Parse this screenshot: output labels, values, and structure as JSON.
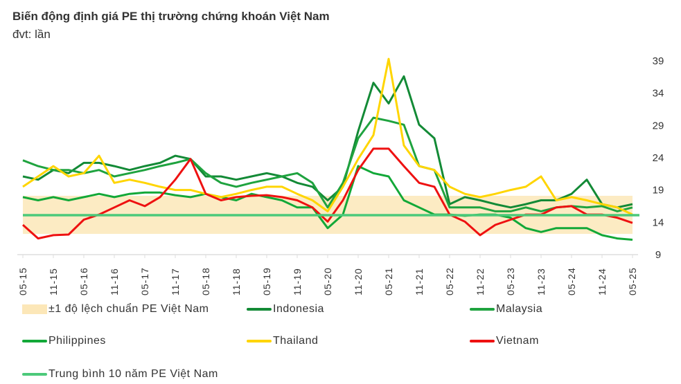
{
  "title": "Biến động định giá PE thị trường chứng khoán Việt Nam",
  "unit": "đvt: lần",
  "chart_data": {
    "type": "line",
    "title": "Biến động định giá PE thị trường chứng khoán Việt Nam",
    "ylabel": "đvt: lần",
    "ylim": [
      9,
      39
    ],
    "yticks": [
      "9",
      "14",
      "19",
      "24",
      "29",
      "34",
      "39"
    ],
    "xticks": [
      "05-15",
      "11-15",
      "05-16",
      "11-16",
      "05-17",
      "11-17",
      "05-18",
      "11-18",
      "05-19",
      "11-19",
      "05-20",
      "11-20",
      "05-21",
      "11-21",
      "05-22",
      "11-22",
      "05-23",
      "11-23",
      "05-24",
      "11-24",
      "05-25"
    ],
    "x": [
      "2015-05",
      "2015-08",
      "2015-11",
      "2016-02",
      "2016-05",
      "2016-08",
      "2016-11",
      "2017-02",
      "2017-05",
      "2017-08",
      "2017-11",
      "2018-02",
      "2018-05",
      "2018-08",
      "2018-11",
      "2019-02",
      "2019-05",
      "2019-08",
      "2019-11",
      "2020-02",
      "2020-05",
      "2020-08",
      "2020-11",
      "2021-02",
      "2021-05",
      "2021-08",
      "2021-11",
      "2022-02",
      "2022-05",
      "2022-08",
      "2022-11",
      "2023-02",
      "2023-05",
      "2023-08",
      "2023-11",
      "2024-02",
      "2024-05",
      "2024-08",
      "2024-11",
      "2025-02",
      "2025-05"
    ],
    "grid": false,
    "legend_position": "bottom",
    "band": {
      "name": "±1 độ lệch chuẩn PE Việt Nam",
      "low": 12.1,
      "high": 18.0,
      "color": "#FCE7B8"
    },
    "mean_line": {
      "name": "Trung bình 10 năm PE Việt Nam",
      "value": 15.0,
      "color": "#4CC97A"
    },
    "series": [
      {
        "name": "Indonesia",
        "color": "#138A36",
        "values": [
          21,
          20.5,
          22,
          21.5,
          23.1,
          23.1,
          22.6,
          22,
          22.6,
          23.1,
          24.2,
          23.7,
          21,
          21,
          20.5,
          21,
          21.5,
          21,
          20,
          19.4,
          17.3,
          19.4,
          28,
          35.5,
          32.3,
          36.5,
          29,
          26.9,
          16.7,
          17.8,
          17.3,
          16.7,
          16.2,
          16.7,
          17.3,
          17.3,
          18.3,
          20.5,
          16.7,
          16.2,
          16.7
        ]
      },
      {
        "name": "Malaysia",
        "color": "#1FA33F",
        "values": [
          23.5,
          22.6,
          22,
          22,
          21.5,
          22,
          21,
          21.5,
          22,
          22.6,
          23.1,
          23.7,
          21.5,
          20,
          19.4,
          20,
          20.5,
          21,
          21.5,
          20,
          16.2,
          20,
          26.9,
          30.1,
          29.6,
          29,
          22.6,
          22,
          16.2,
          16.2,
          16.2,
          15.6,
          15.6,
          16.2,
          15.6,
          16.2,
          16.4,
          16.2,
          16.4,
          15.6,
          16.2
        ]
      },
      {
        "name": "Philippines",
        "color": "#12A838",
        "values": [
          17.8,
          17.3,
          17.8,
          17.3,
          17.8,
          18.3,
          17.8,
          18.3,
          18.5,
          18.5,
          18.1,
          17.8,
          18.3,
          17.8,
          17.3,
          18.3,
          17.8,
          17.3,
          16.2,
          16.2,
          13,
          15.1,
          22.6,
          21.5,
          21,
          17.3,
          16.2,
          15.1,
          15.1,
          14.9,
          15.1,
          15.1,
          14.6,
          13,
          12.4,
          13,
          13,
          13,
          11.9,
          11.4,
          11.2
        ]
      },
      {
        "name": "Thailand",
        "color": "#FFD500",
        "values": [
          19.4,
          21,
          22.6,
          21,
          21.5,
          24.2,
          20,
          20.5,
          20,
          19.4,
          18.9,
          18.9,
          18.3,
          17.8,
          18.3,
          18.9,
          19.4,
          19.4,
          18.3,
          17.3,
          15.6,
          19.4,
          23.7,
          27.4,
          39.2,
          25.8,
          22.6,
          22,
          19.4,
          18.3,
          17.8,
          18.3,
          18.9,
          19.4,
          21,
          17.3,
          17.8,
          17.3,
          16.7,
          16.2,
          15.1
        ]
      },
      {
        "name": "Vietnam",
        "color": "#EE1111",
        "values": [
          13.5,
          11.4,
          11.9,
          12,
          14.3,
          15.1,
          16.2,
          17.3,
          16.4,
          17.8,
          20.5,
          23.7,
          18.3,
          17.3,
          17.8,
          18,
          18.1,
          17.8,
          17.3,
          16.2,
          14,
          17.3,
          22,
          25.3,
          25.3,
          22.6,
          20,
          19.4,
          15.1,
          14,
          11.9,
          13.5,
          14.3,
          15.1,
          15.1,
          16.2,
          16.4,
          15.1,
          15.1,
          14.6,
          13.8
        ]
      }
    ]
  },
  "legend": [
    {
      "label": "±1 độ lệch chuẩn PE Việt Nam",
      "color": "#FCE7B8",
      "kind": "band"
    },
    {
      "label": "Indonesia",
      "color": "#138A36",
      "kind": "line"
    },
    {
      "label": "Malaysia",
      "color": "#1FA33F",
      "kind": "line"
    },
    {
      "label": "Philippines",
      "color": "#12A838",
      "kind": "line"
    },
    {
      "label": "Thailand",
      "color": "#FFD500",
      "kind": "line"
    },
    {
      "label": "Vietnam",
      "color": "#EE1111",
      "kind": "line"
    },
    {
      "label": "Trung bình 10 năm PE Việt Nam",
      "color": "#4CC97A",
      "kind": "line"
    }
  ]
}
